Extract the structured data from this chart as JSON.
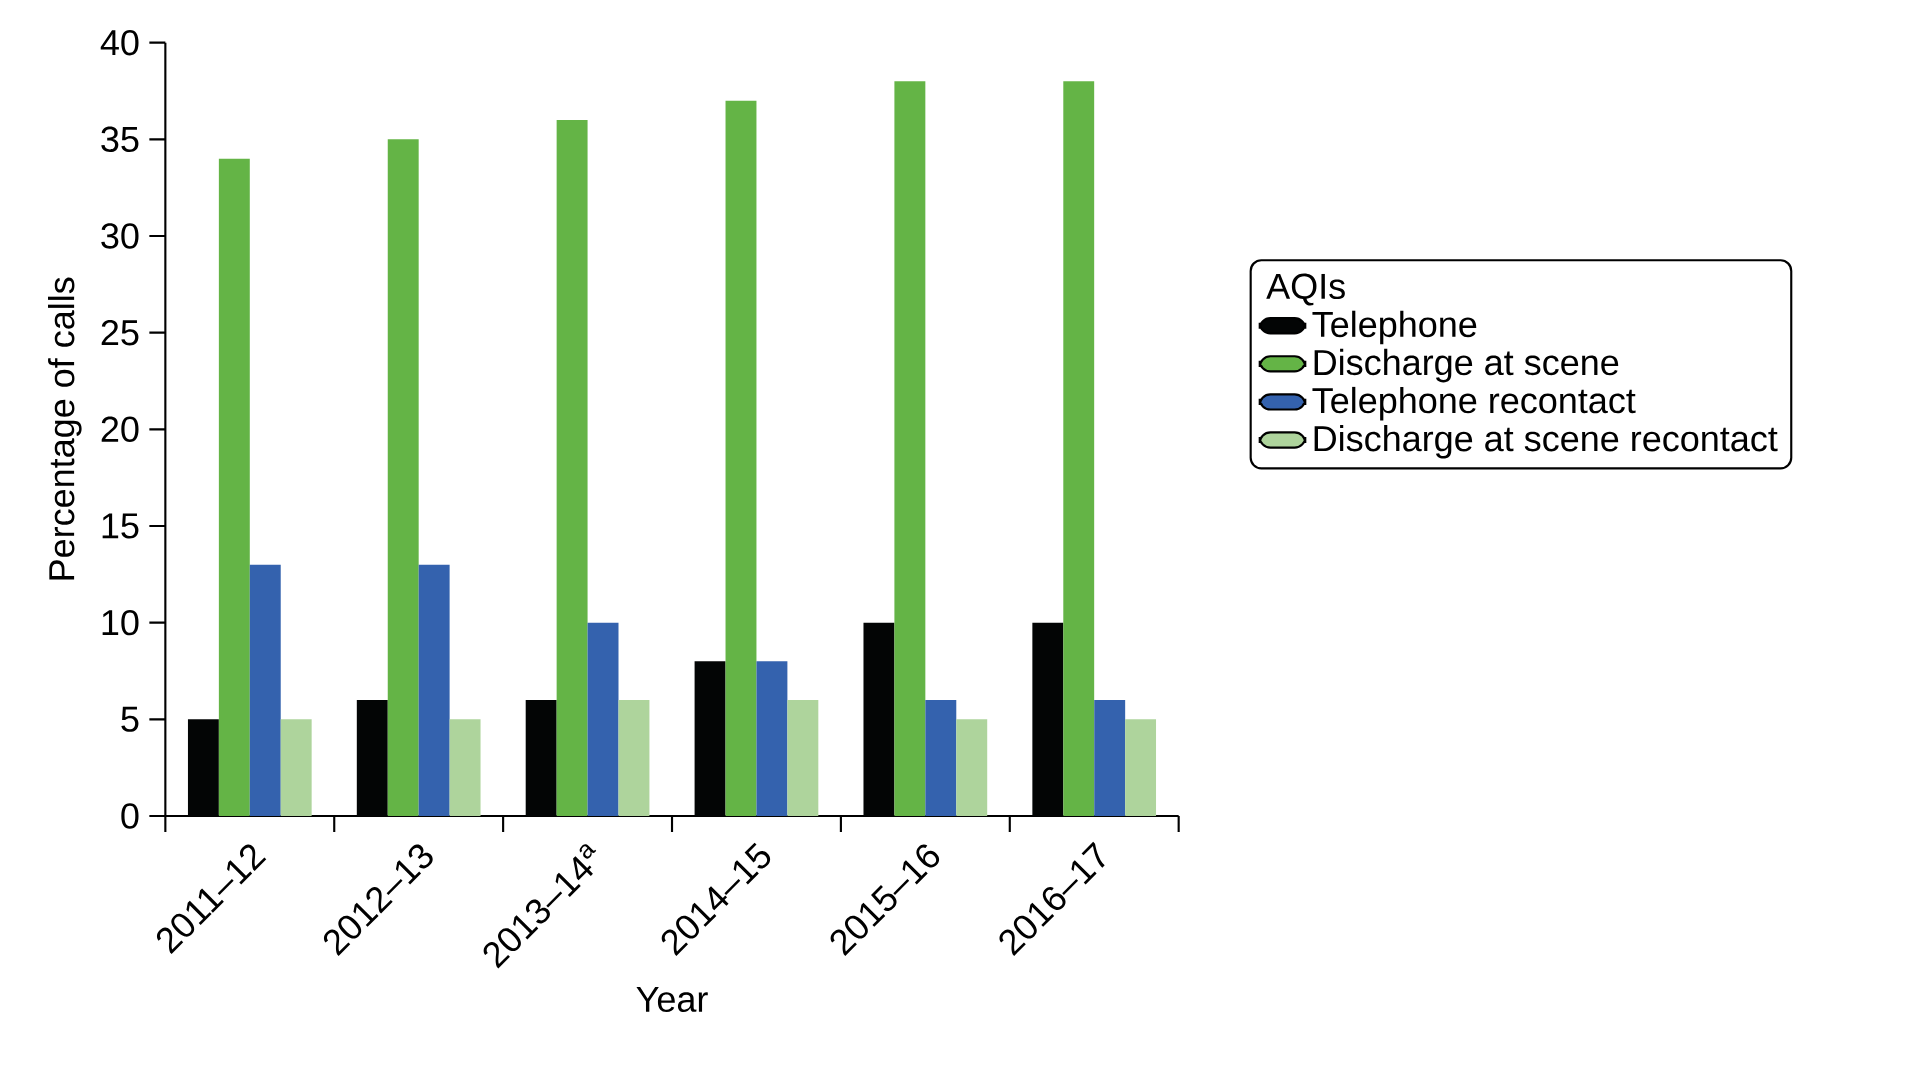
{
  "chart_data": {
    "type": "bar",
    "xlabel": "Year",
    "ylabel": "Percentage of calls",
    "legend_title": "AQIs",
    "legend": "right",
    "categories": [
      "2011–12",
      "2012–13",
      "2013–14$^{a}$",
      "2014–15",
      "2015–16",
      "2016–17"
    ],
    "ylim": [
      0,
      40
    ],
    "yticks": [
      0,
      5,
      10,
      15,
      20,
      25,
      30,
      35,
      40
    ],
    "series": [
      {
        "name": "Telephone",
        "color": "#030505",
        "values": [
          5,
          6,
          6,
          8,
          10,
          10
        ]
      },
      {
        "name": "Discharge at scene",
        "color": "#64b446",
        "values": [
          34,
          35,
          36,
          37,
          38,
          38
        ]
      },
      {
        "name": "Telephone recontact",
        "color": "#3462ae",
        "values": [
          13,
          13,
          10,
          8,
          6,
          6
        ]
      },
      {
        "name": "Discharge at scene recontact",
        "color": "#aed49c",
        "values": [
          5,
          5,
          6,
          6,
          5,
          5
        ]
      }
    ]
  }
}
